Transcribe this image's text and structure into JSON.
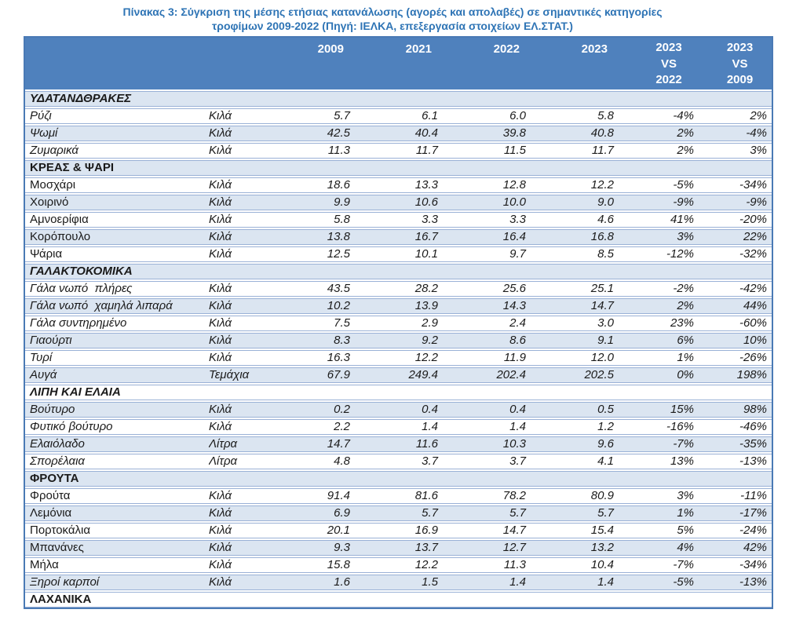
{
  "title": {
    "line1": "Πίνακας 3: Σύγκριση της μέσης ετήσιας κατανάλωσης (αγορές και απολαβές)  σε σημαντικές κατηγορίες",
    "line2": "τροφίμων 2009-2022 (Πηγή: ΙΕΛΚΑ, επεξεργασία στοιχείων ΕΛ.ΣΤΑΤ.)"
  },
  "colors": {
    "header_bg": "#4f81bd",
    "row_alt_bg": "#dbe5f1",
    "row_border": "#9ab1d6",
    "outer_border": "#4a7ab5",
    "title_color": "#2e74b5",
    "header_text": "#ffffff",
    "text": "#1a1a1a"
  },
  "table": {
    "header": {
      "years": [
        "2009",
        "2021",
        "2022",
        "2023"
      ],
      "vs": [
        [
          "2023",
          "VS",
          "2022"
        ],
        [
          "2023",
          "VS",
          "2009"
        ]
      ]
    },
    "rows": [
      {
        "type": "category",
        "label": "ΥΔΑΤΑΝΔΘΡΑΚΕΣ",
        "italic": true
      },
      {
        "type": "item",
        "label": "Ρύζι",
        "italic": true,
        "unit": "Κιλά",
        "values": [
          "5.7",
          "6.1",
          "6.0",
          "5.8",
          "-4%",
          "2%"
        ]
      },
      {
        "type": "item",
        "label": "Ψωμί",
        "italic": true,
        "unit": "Κιλά",
        "values": [
          "42.5",
          "40.4",
          "39.8",
          "40.8",
          "2%",
          "-4%"
        ]
      },
      {
        "type": "item",
        "label": "Ζυμαρικά",
        "italic": true,
        "unit": "Κιλά",
        "values": [
          "11.3",
          "11.7",
          "11.5",
          "11.7",
          "2%",
          "3%"
        ]
      },
      {
        "type": "category",
        "label": "ΚΡΕΑΣ & ΨΑΡΙ",
        "italic": false
      },
      {
        "type": "item",
        "label": "Μοσχάρι",
        "italic": false,
        "unit": "Κιλά",
        "values": [
          "18.6",
          "13.3",
          "12.8",
          "12.2",
          "-5%",
          "-34%"
        ]
      },
      {
        "type": "item",
        "label": "Χοιρινό",
        "italic": false,
        "unit": "Κιλά",
        "values": [
          "9.9",
          "10.6",
          "10.0",
          "9.0",
          "-9%",
          "-9%"
        ]
      },
      {
        "type": "item",
        "label": "Αμνοερίφια",
        "italic": false,
        "unit": "Κιλά",
        "values": [
          "5.8",
          "3.3",
          "3.3",
          "4.6",
          "41%",
          "-20%"
        ]
      },
      {
        "type": "item",
        "label": "Κορόπουλο",
        "italic": false,
        "unit": "Κιλά",
        "values": [
          "13.8",
          "16.7",
          "16.4",
          "16.8",
          "3%",
          "22%"
        ]
      },
      {
        "type": "item",
        "label": "Ψάρια",
        "italic": false,
        "unit": "Κιλά",
        "values": [
          "12.5",
          "10.1",
          "9.7",
          "8.5",
          "-12%",
          "-32%"
        ]
      },
      {
        "type": "category",
        "label": "ΓΑΛΑΚΤΟΚΟΜΙΚΑ",
        "italic": true
      },
      {
        "type": "item",
        "label": "Γάλα νωπό  πλήρες",
        "italic": true,
        "unit": "Κιλά",
        "values": [
          "43.5",
          "28.2",
          "25.6",
          "25.1",
          "-2%",
          "-42%"
        ]
      },
      {
        "type": "item",
        "label": "Γάλα νωπό  χαμηλά λιπαρά",
        "italic": true,
        "unit": "Κιλά",
        "values": [
          "10.2",
          "13.9",
          "14.3",
          "14.7",
          "2%",
          "44%"
        ]
      },
      {
        "type": "item",
        "label": "Γάλα συντηρημένο",
        "italic": true,
        "unit": "Κιλά",
        "values": [
          "7.5",
          "2.9",
          "2.4",
          "3.0",
          "23%",
          "-60%"
        ]
      },
      {
        "type": "item",
        "label": "Γιαούρτι",
        "italic": true,
        "unit": "Κιλά",
        "values": [
          "8.3",
          "9.2",
          "8.6",
          "9.1",
          "6%",
          "10%"
        ]
      },
      {
        "type": "item",
        "label": "Τυρί",
        "italic": true,
        "unit": "Κιλά",
        "values": [
          "16.3",
          "12.2",
          "11.9",
          "12.0",
          "1%",
          "-26%"
        ]
      },
      {
        "type": "item",
        "label": "Αυγά",
        "italic": true,
        "unit": "Τεμάχια",
        "values": [
          "67.9",
          "249.4",
          "202.4",
          "202.5",
          "0%",
          "198%"
        ]
      },
      {
        "type": "category",
        "label": "ΛΙΠΗ ΚΑΙ ΕΛΑΙΑ",
        "italic": true
      },
      {
        "type": "item",
        "label": "Βούτυρο",
        "italic": true,
        "unit": "Κιλά",
        "values": [
          "0.2",
          "0.4",
          "0.4",
          "0.5",
          "15%",
          "98%"
        ]
      },
      {
        "type": "item",
        "label": "Φυτικό βούτυρο",
        "italic": true,
        "unit": "Κιλά",
        "values": [
          "2.2",
          "1.4",
          "1.4",
          "1.2",
          "-16%",
          "-46%"
        ]
      },
      {
        "type": "item",
        "label": "Ελαιόλαδο",
        "italic": true,
        "unit": "Λίτρα",
        "values": [
          "14.7",
          "11.6",
          "10.3",
          "9.6",
          "-7%",
          "-35%"
        ]
      },
      {
        "type": "item",
        "label": "Σπορέλαια",
        "italic": true,
        "unit": "Λίτρα",
        "values": [
          "4.8",
          "3.7",
          "3.7",
          "4.1",
          "13%",
          "-13%"
        ]
      },
      {
        "type": "category",
        "label": "ΦΡΟΥΤΑ",
        "italic": false
      },
      {
        "type": "item",
        "label": "Φρούτα",
        "italic": false,
        "unit": "Κιλά",
        "values": [
          "91.4",
          "81.6",
          "78.2",
          "80.9",
          "3%",
          "-11%"
        ]
      },
      {
        "type": "item",
        "label": "Λεμόνια",
        "italic": false,
        "unit": "Κιλά",
        "values": [
          "6.9",
          "5.7",
          "5.7",
          "5.7",
          "1%",
          "-17%"
        ]
      },
      {
        "type": "item",
        "label": "Πορτοκάλια",
        "italic": false,
        "unit": "Κιλά",
        "values": [
          "20.1",
          "16.9",
          "14.7",
          "15.4",
          "5%",
          "-24%"
        ]
      },
      {
        "type": "item",
        "label": "Μπανάνες",
        "italic": false,
        "unit": "Κιλά",
        "values": [
          "9.3",
          "13.7",
          "12.7",
          "13.2",
          "4%",
          "42%"
        ]
      },
      {
        "type": "item",
        "label": "Μήλα",
        "italic": false,
        "unit": "Κιλά",
        "values": [
          "15.8",
          "12.2",
          "11.3",
          "10.4",
          "-7%",
          "-34%"
        ]
      },
      {
        "type": "item",
        "label": "Ξηροί καρποί",
        "italic": true,
        "unit": "Κιλά",
        "values": [
          "1.6",
          "1.5",
          "1.4",
          "1.4",
          "-5%",
          "-13%"
        ]
      },
      {
        "type": "category",
        "label": "ΛΑΧΑΝΙΚΑ",
        "italic": false
      }
    ]
  }
}
